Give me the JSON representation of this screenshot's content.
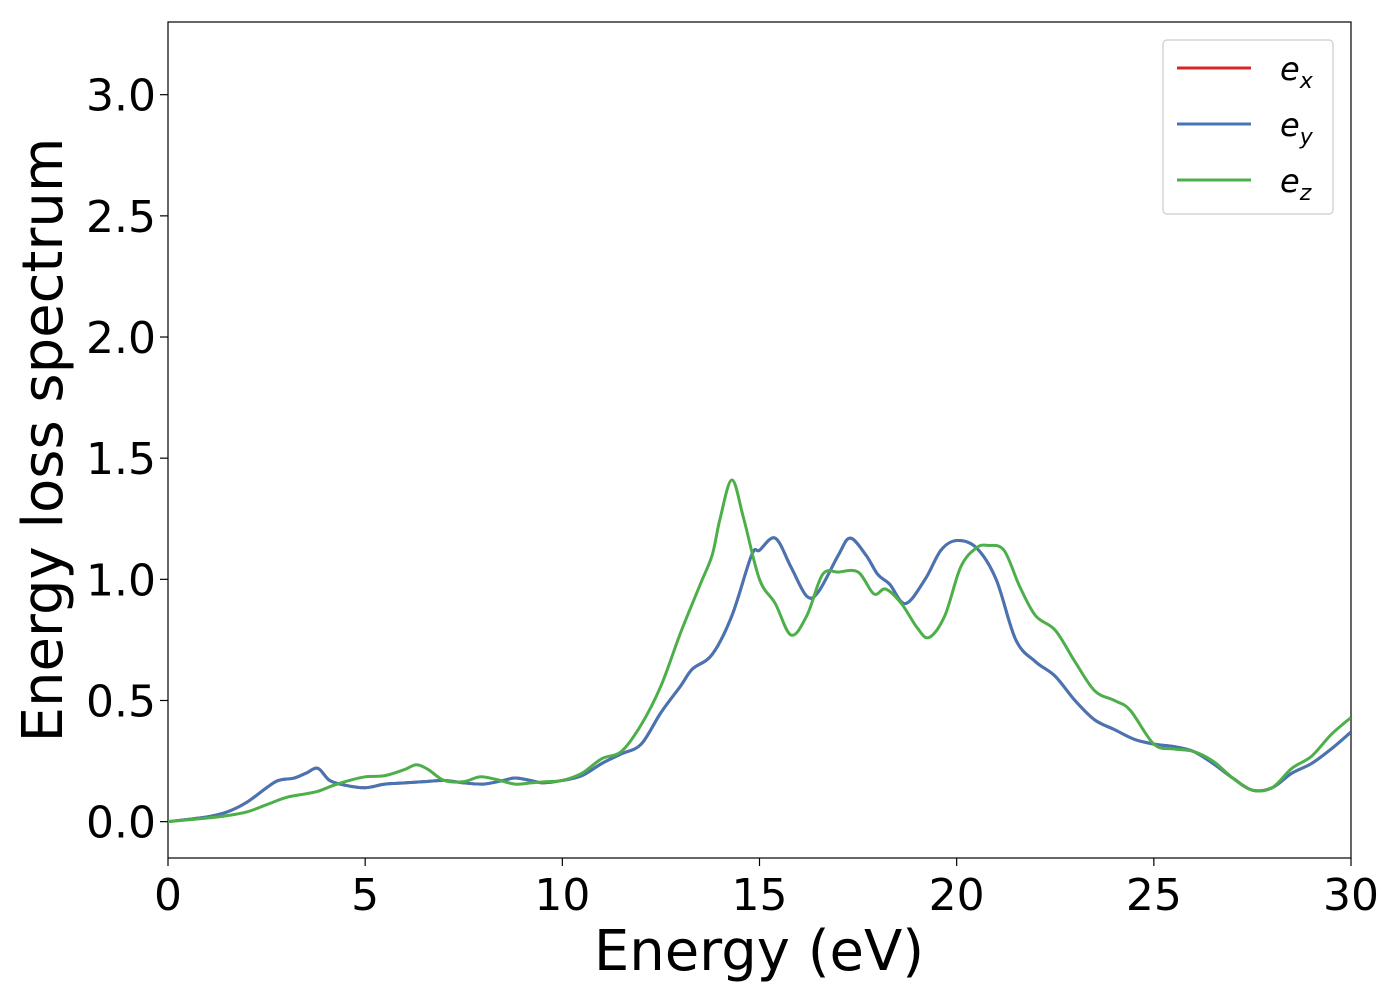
{
  "chart_data": {
    "type": "line",
    "xlabel": "Energy (eV)",
    "ylabel": "Energy loss spectrum",
    "xlim": [
      0,
      30
    ],
    "ylim": [
      -0.15,
      3.3
    ],
    "xticks": [
      0,
      5,
      10,
      15,
      20,
      25,
      30
    ],
    "xtick_labels": [
      "0",
      "5",
      "10",
      "15",
      "20",
      "25",
      "30"
    ],
    "yticks": [
      0.0,
      0.5,
      1.0,
      1.5,
      2.0,
      2.5,
      3.0
    ],
    "ytick_labels": [
      "0.0",
      "0.5",
      "1.0",
      "1.5",
      "2.0",
      "2.5",
      "3.0"
    ],
    "grid": false,
    "legend_position": "top-right",
    "series": [
      {
        "name": "e",
        "subscript": "x",
        "color": "#d62728",
        "x": [
          0,
          1,
          1.5,
          2,
          2.5,
          2.8,
          3.2,
          3.5,
          3.8,
          4.1,
          4.5,
          5,
          5.5,
          6,
          6.5,
          7,
          7.5,
          8,
          8.5,
          8.8,
          9.2,
          9.5,
          10,
          10.5,
          11,
          11.5,
          12,
          12.5,
          13,
          13.3,
          13.8,
          14.3,
          14.8,
          15,
          15.4,
          15.8,
          16.2,
          16.5,
          17,
          17.3,
          17.7,
          18,
          18.3,
          18.7,
          19.2,
          19.6,
          20,
          20.5,
          21,
          21.5,
          22,
          22.5,
          23,
          23.5,
          24,
          24.5,
          25,
          25.5,
          26,
          26.5,
          27,
          27.5,
          28,
          28.5,
          29,
          29.5,
          30
        ],
        "y": [
          0,
          0.02,
          0.04,
          0.08,
          0.14,
          0.17,
          0.18,
          0.2,
          0.22,
          0.17,
          0.15,
          0.14,
          0.155,
          0.16,
          0.165,
          0.17,
          0.16,
          0.155,
          0.17,
          0.18,
          0.17,
          0.16,
          0.17,
          0.19,
          0.24,
          0.28,
          0.32,
          0.45,
          0.56,
          0.63,
          0.69,
          0.85,
          1.1,
          1.12,
          1.17,
          1.05,
          0.93,
          0.95,
          1.1,
          1.17,
          1.1,
          1.02,
          0.98,
          0.9,
          1.0,
          1.12,
          1.16,
          1.13,
          1.0,
          0.75,
          0.66,
          0.6,
          0.5,
          0.42,
          0.38,
          0.34,
          0.32,
          0.31,
          0.29,
          0.24,
          0.18,
          0.13,
          0.14,
          0.2,
          0.24,
          0.3,
          0.37
        ]
      },
      {
        "name": "e",
        "subscript": "y",
        "color": "#4575b4",
        "x": [
          0,
          1,
          1.5,
          2,
          2.5,
          2.8,
          3.2,
          3.5,
          3.8,
          4.1,
          4.5,
          5,
          5.5,
          6,
          6.5,
          7,
          7.5,
          8,
          8.5,
          8.8,
          9.2,
          9.5,
          10,
          10.5,
          11,
          11.5,
          12,
          12.5,
          13,
          13.3,
          13.8,
          14.3,
          14.8,
          15,
          15.4,
          15.8,
          16.2,
          16.5,
          17,
          17.3,
          17.7,
          18,
          18.3,
          18.7,
          19.2,
          19.6,
          20,
          20.5,
          21,
          21.5,
          22,
          22.5,
          23,
          23.5,
          24,
          24.5,
          25,
          25.5,
          26,
          26.5,
          27,
          27.5,
          28,
          28.5,
          29,
          29.5,
          30
        ],
        "y": [
          0,
          0.02,
          0.04,
          0.08,
          0.14,
          0.17,
          0.18,
          0.2,
          0.22,
          0.17,
          0.15,
          0.14,
          0.155,
          0.16,
          0.165,
          0.17,
          0.16,
          0.155,
          0.17,
          0.18,
          0.17,
          0.16,
          0.17,
          0.19,
          0.24,
          0.28,
          0.32,
          0.45,
          0.56,
          0.63,
          0.69,
          0.85,
          1.1,
          1.12,
          1.17,
          1.05,
          0.93,
          0.95,
          1.1,
          1.17,
          1.1,
          1.02,
          0.98,
          0.9,
          1.0,
          1.12,
          1.16,
          1.13,
          1.0,
          0.75,
          0.66,
          0.6,
          0.5,
          0.42,
          0.38,
          0.34,
          0.32,
          0.31,
          0.29,
          0.24,
          0.18,
          0.13,
          0.14,
          0.2,
          0.24,
          0.3,
          0.37
        ]
      },
      {
        "name": "e",
        "subscript": "z",
        "color": "#4daf4a",
        "x": [
          0,
          1,
          1.5,
          2,
          2.5,
          3,
          3.5,
          3.8,
          4.2,
          4.6,
          5,
          5.5,
          6,
          6.3,
          6.6,
          7,
          7.5,
          7.9,
          8.3,
          8.8,
          9.2,
          9.6,
          10,
          10.5,
          11,
          11.5,
          12,
          12.5,
          13,
          13.5,
          13.8,
          14,
          14.3,
          14.6,
          15,
          15.4,
          15.8,
          16.2,
          16.6,
          17,
          17.5,
          17.9,
          18.2,
          18.6,
          19,
          19.3,
          19.7,
          20.1,
          20.5,
          20.8,
          21.2,
          21.6,
          22,
          22.5,
          23,
          23.5,
          24,
          24.4,
          25,
          25.5,
          26,
          26.5,
          27,
          27.5,
          28,
          28.5,
          29,
          29.5,
          30
        ],
        "y": [
          0,
          0.015,
          0.025,
          0.04,
          0.07,
          0.1,
          0.115,
          0.125,
          0.15,
          0.17,
          0.185,
          0.19,
          0.215,
          0.235,
          0.215,
          0.17,
          0.165,
          0.185,
          0.175,
          0.155,
          0.16,
          0.165,
          0.17,
          0.2,
          0.26,
          0.29,
          0.4,
          0.56,
          0.78,
          0.98,
          1.1,
          1.25,
          1.41,
          1.25,
          1.0,
          0.9,
          0.77,
          0.85,
          1.02,
          1.03,
          1.03,
          0.94,
          0.96,
          0.9,
          0.8,
          0.76,
          0.85,
          1.05,
          1.13,
          1.14,
          1.12,
          0.97,
          0.85,
          0.79,
          0.66,
          0.54,
          0.5,
          0.46,
          0.32,
          0.3,
          0.29,
          0.25,
          0.18,
          0.13,
          0.14,
          0.22,
          0.27,
          0.36,
          0.43
        ]
      }
    ]
  }
}
